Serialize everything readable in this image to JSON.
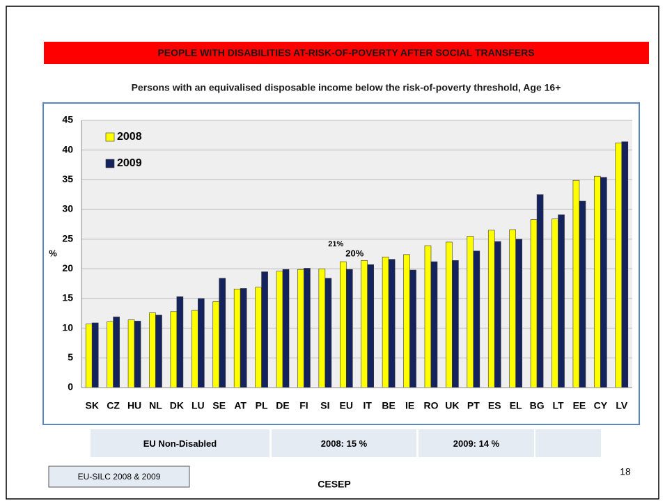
{
  "title": "PEOPLE WITH DISABILITIES  AT-RISK-OF-POVERTY AFTER SOCIAL TRANSFERS",
  "subtitle": "Persons with an equivalised disposable income below the risk-of-poverty threshold, Age 16+",
  "chart_data": {
    "type": "bar",
    "ylabel": "%",
    "categories": [
      "SK",
      "CZ",
      "HU",
      "NL",
      "DK",
      "LU",
      "SE",
      "AT",
      "PL",
      "DE",
      "FI",
      "SI",
      "EU",
      "IT",
      "BE",
      "IE",
      "RO",
      "UK",
      "PT",
      "ES",
      "EL",
      "BG",
      "LT",
      "EE",
      "CY",
      "LV"
    ],
    "series": [
      {
        "name": "2008",
        "color": "#ffff00",
        "values": [
          10.7,
          11.1,
          11.4,
          12.6,
          12.8,
          13.0,
          14.5,
          16.6,
          16.9,
          19.6,
          19.9,
          20.0,
          21.2,
          21.4,
          22.0,
          22.4,
          23.9,
          24.5,
          25.5,
          26.5,
          26.6,
          28.3,
          28.4,
          34.9,
          35.6,
          41.2
        ],
        "value_labels": [
          null,
          null,
          null,
          null,
          null,
          null,
          null,
          null,
          null,
          null,
          null,
          null,
          "21%",
          null,
          null,
          null,
          null,
          null,
          null,
          null,
          null,
          null,
          null,
          null,
          null,
          null
        ]
      },
      {
        "name": "2009",
        "color": "#14225e",
        "values": [
          10.9,
          11.9,
          11.2,
          12.2,
          15.3,
          15.0,
          18.4,
          16.7,
          19.5,
          19.9,
          20.1,
          18.4,
          19.9,
          20.7,
          21.6,
          19.8,
          21.2,
          21.4,
          23.0,
          24.6,
          25.0,
          32.5,
          29.1,
          31.4,
          35.4,
          41.4
        ],
        "value_labels": [
          null,
          null,
          null,
          null,
          null,
          null,
          null,
          null,
          null,
          null,
          null,
          null,
          "20%",
          null,
          null,
          null,
          null,
          null,
          null,
          null,
          null,
          null,
          null,
          null,
          null,
          null
        ]
      }
    ],
    "ylim": [
      0,
      45
    ],
    "yticks": [
      0,
      5,
      10,
      15,
      20,
      25,
      30,
      35,
      40,
      45
    ],
    "grid": true,
    "legend": "upper left"
  },
  "table": {
    "rows": [
      [
        "EU Non-Disabled",
        "2008: 15 %",
        "2009: 14 %"
      ]
    ]
  },
  "footer": {
    "source": "EU-SILC 2008 & 2009",
    "organization": "CESEP",
    "page": "18"
  }
}
